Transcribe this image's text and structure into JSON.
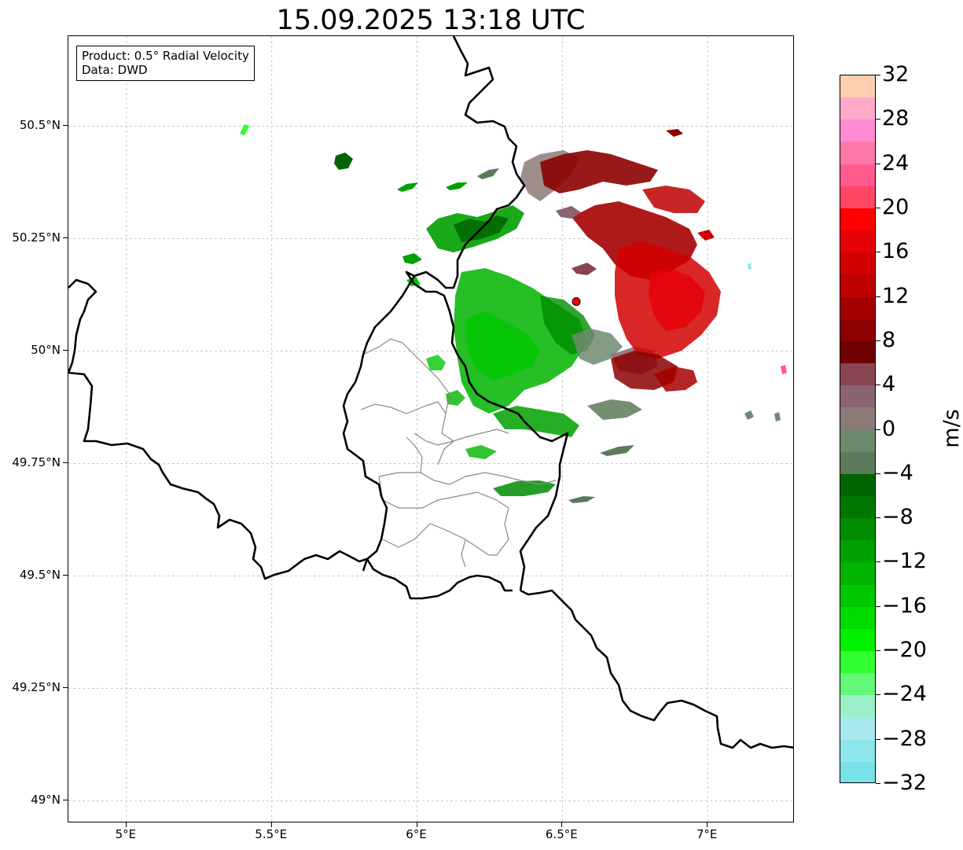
{
  "title": "15.09.2025 13:18 UTC",
  "info_box": {
    "product": "Product: 0.5° Radial Velocity",
    "source": "Data: DWD"
  },
  "axes": {
    "lon_range": [
      4.8,
      7.3
    ],
    "lat_range": [
      48.95,
      50.7
    ],
    "x_ticks": [
      {
        "value": 5.0,
        "label": "5°E"
      },
      {
        "value": 5.5,
        "label": "5.5°E"
      },
      {
        "value": 6.0,
        "label": "6°E"
      },
      {
        "value": 6.5,
        "label": "6.5°E"
      },
      {
        "value": 7.0,
        "label": "7°E"
      }
    ],
    "y_ticks": [
      {
        "value": 50.5,
        "label": "50.5°N"
      },
      {
        "value": 50.25,
        "label": "50.25°N"
      },
      {
        "value": 50.0,
        "label": "50°N"
      },
      {
        "value": 49.75,
        "label": "49.75°N"
      },
      {
        "value": 49.5,
        "label": "49.5°N"
      },
      {
        "value": 49.25,
        "label": "49.25°N"
      },
      {
        "value": 49.0,
        "label": "49°N"
      }
    ],
    "grid": true
  },
  "radar_site": {
    "lon": 6.548,
    "lat": 50.11,
    "color": "#ff0000"
  },
  "colorbar": {
    "unit": "m/s",
    "range": [
      -32,
      32
    ],
    "tick_labels": [
      {
        "value": 32,
        "label": "32"
      },
      {
        "value": 28,
        "label": "28"
      },
      {
        "value": 24,
        "label": "24"
      },
      {
        "value": 20,
        "label": "20"
      },
      {
        "value": 16,
        "label": "16"
      },
      {
        "value": 12,
        "label": "12"
      },
      {
        "value": 8,
        "label": "8"
      },
      {
        "value": 4,
        "label": "4"
      },
      {
        "value": 0,
        "label": "0"
      },
      {
        "value": -4,
        "label": "−4"
      },
      {
        "value": -8,
        "label": "−8"
      },
      {
        "value": -12,
        "label": "−12"
      },
      {
        "value": -16,
        "label": "−16"
      },
      {
        "value": -20,
        "label": "−20"
      },
      {
        "value": -24,
        "label": "−24"
      },
      {
        "value": -28,
        "label": "−28"
      },
      {
        "value": -32,
        "label": "−32"
      }
    ],
    "bands": [
      {
        "from": 30,
        "to": 32,
        "color": "#ffcfb0"
      },
      {
        "from": 28,
        "to": 30,
        "color": "#ffaac8"
      },
      {
        "from": 26,
        "to": 28,
        "color": "#ff8cd2"
      },
      {
        "from": 24,
        "to": 26,
        "color": "#ff78aa"
      },
      {
        "from": 22,
        "to": 24,
        "color": "#ff5a8c"
      },
      {
        "from": 20,
        "to": 22,
        "color": "#ff4664"
      },
      {
        "from": 18,
        "to": 20,
        "color": "#ff0000"
      },
      {
        "from": 16,
        "to": 18,
        "color": "#e60008"
      },
      {
        "from": 14,
        "to": 16,
        "color": "#d20000"
      },
      {
        "from": 12,
        "to": 14,
        "color": "#be0000"
      },
      {
        "from": 10,
        "to": 12,
        "color": "#a50000"
      },
      {
        "from": 8,
        "to": 10,
        "color": "#8c0000"
      },
      {
        "from": 6,
        "to": 8,
        "color": "#6e0000"
      },
      {
        "from": 4,
        "to": 6,
        "color": "#884450"
      },
      {
        "from": 2,
        "to": 4,
        "color": "#8a6470"
      },
      {
        "from": 0,
        "to": 2,
        "color": "#8c7a78"
      },
      {
        "from": -2,
        "to": 0,
        "color": "#6e8a6e"
      },
      {
        "from": -4,
        "to": -2,
        "color": "#5a7a5a"
      },
      {
        "from": -6,
        "to": -4,
        "color": "#006400"
      },
      {
        "from": -8,
        "to": -6,
        "color": "#007800"
      },
      {
        "from": -10,
        "to": -8,
        "color": "#008c00"
      },
      {
        "from": -12,
        "to": -10,
        "color": "#00a000"
      },
      {
        "from": -14,
        "to": -12,
        "color": "#00b400"
      },
      {
        "from": -16,
        "to": -14,
        "color": "#00c800"
      },
      {
        "from": -18,
        "to": -16,
        "color": "#00dc00"
      },
      {
        "from": -20,
        "to": -18,
        "color": "#00f000"
      },
      {
        "from": -22,
        "to": -20,
        "color": "#30ff30"
      },
      {
        "from": -24,
        "to": -22,
        "color": "#64f878"
      },
      {
        "from": -26,
        "to": -24,
        "color": "#9cf0c8"
      },
      {
        "from": -28,
        "to": -26,
        "color": "#aae8f0"
      },
      {
        "from": -30,
        "to": -28,
        "color": "#8ce6ec"
      },
      {
        "from": -32,
        "to": -30,
        "color": "#78e2e8"
      }
    ]
  },
  "colors": {
    "border_line": "#000000",
    "region_line": "#888888",
    "grid_line": "#bbbbbb"
  }
}
